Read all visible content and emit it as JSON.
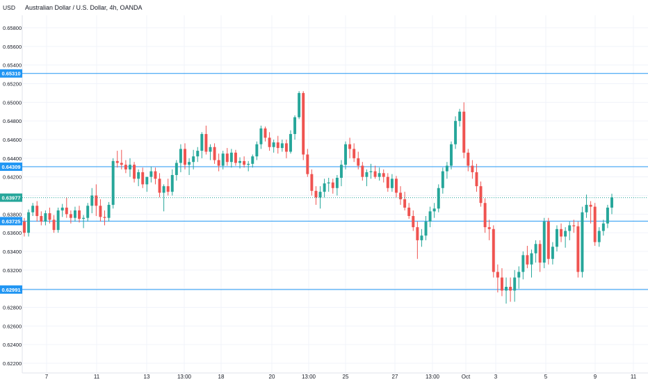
{
  "header": {
    "currency": "USD",
    "title": "Australian Dollar / U.S. Dollar, 4h, OANDA"
  },
  "colors": {
    "up": "#26a69a",
    "down": "#ef5350",
    "hline": "#2196f3",
    "grid": "#f0f3fa",
    "text": "#131722"
  },
  "chart_data": {
    "type": "candlestick",
    "title": "Australian Dollar / U.S. Dollar, 4h, OANDA",
    "ylim": [
      0.621,
      0.6598
    ],
    "y_ticks": [
      "0.62200",
      "0.62400",
      "0.62600",
      "0.62800",
      "0.63000",
      "0.63200",
      "0.63400",
      "0.63600",
      "0.63800",
      "0.64000",
      "0.64200",
      "0.64400",
      "0.64600",
      "0.64800",
      "0.65000",
      "0.65200",
      "0.65400",
      "0.65600",
      "0.65800"
    ],
    "x_ticks": [
      "7",
      "11",
      "13",
      "13:00",
      "18",
      "20",
      "13:00",
      "25",
      "27",
      "13:00",
      "Oct",
      "3",
      "5",
      "9",
      "11"
    ],
    "horizontal_levels": [
      "0.65310",
      "0.64309",
      "0.63725",
      "0.62991"
    ],
    "last_price": "0.63977",
    "grid": true,
    "candles": [
      [
        0.6372,
        0.6376,
        0.6356,
        0.636
      ],
      [
        0.636,
        0.6385,
        0.6356,
        0.6382
      ],
      [
        0.6382,
        0.6392,
        0.6378,
        0.6389
      ],
      [
        0.6389,
        0.6394,
        0.6372,
        0.6378
      ],
      [
        0.6378,
        0.6383,
        0.6368,
        0.6372
      ],
      [
        0.6372,
        0.6384,
        0.6368,
        0.6381
      ],
      [
        0.6381,
        0.6387,
        0.637,
        0.6374
      ],
      [
        0.6374,
        0.6379,
        0.636,
        0.6363
      ],
      [
        0.6363,
        0.6387,
        0.636,
        0.6384
      ],
      [
        0.6384,
        0.6391,
        0.6377,
        0.6387
      ],
      [
        0.6387,
        0.6398,
        0.6376,
        0.638
      ],
      [
        0.638,
        0.6384,
        0.637,
        0.6376
      ],
      [
        0.6376,
        0.6388,
        0.6372,
        0.6384
      ],
      [
        0.6384,
        0.6389,
        0.6371,
        0.6375
      ],
      [
        0.6375,
        0.6379,
        0.6365,
        0.6376
      ],
      [
        0.6376,
        0.6392,
        0.6372,
        0.6389
      ],
      [
        0.6389,
        0.6408,
        0.6381,
        0.64
      ],
      [
        0.64,
        0.6412,
        0.6378,
        0.6389
      ],
      [
        0.6389,
        0.6396,
        0.6372,
        0.6377
      ],
      [
        0.6377,
        0.6384,
        0.6368,
        0.6376
      ],
      [
        0.6376,
        0.6393,
        0.6372,
        0.639
      ],
      [
        0.639,
        0.644,
        0.6386,
        0.6437
      ],
      [
        0.6437,
        0.6448,
        0.643,
        0.6435
      ],
      [
        0.6435,
        0.6449,
        0.6428,
        0.6433
      ],
      [
        0.6433,
        0.6438,
        0.6424,
        0.6428
      ],
      [
        0.6428,
        0.644,
        0.642,
        0.6433
      ],
      [
        0.6433,
        0.6436,
        0.6414,
        0.6418
      ],
      [
        0.6418,
        0.6428,
        0.641,
        0.6425
      ],
      [
        0.6425,
        0.643,
        0.6408,
        0.6412
      ],
      [
        0.6412,
        0.642,
        0.6404,
        0.642
      ],
      [
        0.642,
        0.6431,
        0.6414,
        0.6426
      ],
      [
        0.6426,
        0.643,
        0.6412,
        0.6418
      ],
      [
        0.6418,
        0.6424,
        0.6398,
        0.6403
      ],
      [
        0.6403,
        0.6412,
        0.6383,
        0.641
      ],
      [
        0.641,
        0.6418,
        0.64,
        0.6404
      ],
      [
        0.6404,
        0.6428,
        0.64,
        0.6422
      ],
      [
        0.6422,
        0.6438,
        0.6416,
        0.6435
      ],
      [
        0.6435,
        0.6455,
        0.6425,
        0.645
      ],
      [
        0.645,
        0.6456,
        0.6428,
        0.6433
      ],
      [
        0.6433,
        0.644,
        0.6422,
        0.6436
      ],
      [
        0.6436,
        0.6449,
        0.6428,
        0.6442
      ],
      [
        0.6442,
        0.6452,
        0.6436,
        0.6448
      ],
      [
        0.6448,
        0.6468,
        0.644,
        0.6466
      ],
      [
        0.6466,
        0.6475,
        0.6444,
        0.6447
      ],
      [
        0.6447,
        0.6455,
        0.6438,
        0.6452
      ],
      [
        0.6452,
        0.6456,
        0.6434,
        0.6438
      ],
      [
        0.6438,
        0.6445,
        0.6426,
        0.6432
      ],
      [
        0.6432,
        0.6448,
        0.6428,
        0.6445
      ],
      [
        0.6445,
        0.6451,
        0.6432,
        0.6436
      ],
      [
        0.6436,
        0.645,
        0.643,
        0.6446
      ],
      [
        0.6446,
        0.6449,
        0.6432,
        0.6435
      ],
      [
        0.6435,
        0.6441,
        0.6429,
        0.6437
      ],
      [
        0.6437,
        0.6442,
        0.643,
        0.6433
      ],
      [
        0.6433,
        0.6437,
        0.6426,
        0.6434
      ],
      [
        0.6434,
        0.6444,
        0.643,
        0.6442
      ],
      [
        0.6442,
        0.6458,
        0.6438,
        0.6455
      ],
      [
        0.6455,
        0.6475,
        0.645,
        0.6472
      ],
      [
        0.6472,
        0.6474,
        0.6458,
        0.6462
      ],
      [
        0.6462,
        0.6468,
        0.6448,
        0.6452
      ],
      [
        0.6452,
        0.646,
        0.6446,
        0.6457
      ],
      [
        0.6457,
        0.6464,
        0.6445,
        0.6451
      ],
      [
        0.6451,
        0.646,
        0.6447,
        0.6456
      ],
      [
        0.6456,
        0.646,
        0.644,
        0.6447
      ],
      [
        0.6447,
        0.647,
        0.6445,
        0.6466
      ],
      [
        0.6466,
        0.6486,
        0.646,
        0.6484
      ],
      [
        0.6484,
        0.6512,
        0.6482,
        0.651
      ],
      [
        0.651,
        0.6512,
        0.6438,
        0.6444
      ],
      [
        0.6444,
        0.645,
        0.642,
        0.6423
      ],
      [
        0.6423,
        0.6428,
        0.64,
        0.6405
      ],
      [
        0.6405,
        0.641,
        0.639,
        0.6398
      ],
      [
        0.6398,
        0.641,
        0.6386,
        0.6404
      ],
      [
        0.6404,
        0.6418,
        0.6398,
        0.6413
      ],
      [
        0.6413,
        0.6419,
        0.6404,
        0.6414
      ],
      [
        0.6414,
        0.6418,
        0.6402,
        0.6408
      ],
      [
        0.6408,
        0.6422,
        0.64,
        0.6419
      ],
      [
        0.6419,
        0.6438,
        0.641,
        0.6433
      ],
      [
        0.6433,
        0.6458,
        0.6428,
        0.6455
      ],
      [
        0.6455,
        0.6462,
        0.644,
        0.645
      ],
      [
        0.645,
        0.6456,
        0.6436,
        0.644
      ],
      [
        0.644,
        0.6447,
        0.6428,
        0.6432
      ],
      [
        0.6432,
        0.6436,
        0.6416,
        0.642
      ],
      [
        0.642,
        0.6428,
        0.641,
        0.6425
      ],
      [
        0.6425,
        0.6434,
        0.6418,
        0.6426
      ],
      [
        0.6426,
        0.6432,
        0.6418,
        0.642
      ],
      [
        0.642,
        0.643,
        0.6416,
        0.6424
      ],
      [
        0.6424,
        0.6428,
        0.6414,
        0.642
      ],
      [
        0.642,
        0.6424,
        0.6404,
        0.6408
      ],
      [
        0.6408,
        0.6423,
        0.6404,
        0.6418
      ],
      [
        0.6418,
        0.6421,
        0.6398,
        0.6403
      ],
      [
        0.6403,
        0.641,
        0.639,
        0.6396
      ],
      [
        0.6396,
        0.6404,
        0.6384,
        0.6387
      ],
      [
        0.6387,
        0.6392,
        0.6375,
        0.6378
      ],
      [
        0.6378,
        0.6384,
        0.6362,
        0.6366
      ],
      [
        0.6366,
        0.6372,
        0.6332,
        0.6352
      ],
      [
        0.6352,
        0.6364,
        0.6345,
        0.6357
      ],
      [
        0.6357,
        0.6378,
        0.6352,
        0.6372
      ],
      [
        0.6372,
        0.6388,
        0.6366,
        0.6383
      ],
      [
        0.6383,
        0.6392,
        0.6376,
        0.6386
      ],
      [
        0.6386,
        0.6412,
        0.6382,
        0.6408
      ],
      [
        0.6408,
        0.643,
        0.6402,
        0.6426
      ],
      [
        0.6426,
        0.6436,
        0.6418,
        0.6432
      ],
      [
        0.6432,
        0.6458,
        0.6428,
        0.6455
      ],
      [
        0.6455,
        0.6485,
        0.645,
        0.648
      ],
      [
        0.648,
        0.6493,
        0.6474,
        0.649
      ],
      [
        0.649,
        0.65,
        0.644,
        0.6446
      ],
      [
        0.6446,
        0.645,
        0.6426,
        0.6432
      ],
      [
        0.6432,
        0.6438,
        0.6418,
        0.6425
      ],
      [
        0.6425,
        0.6434,
        0.6404,
        0.641
      ],
      [
        0.641,
        0.6415,
        0.6388,
        0.6392
      ],
      [
        0.6392,
        0.6397,
        0.636,
        0.6366
      ],
      [
        0.6366,
        0.6374,
        0.6352,
        0.6364
      ],
      [
        0.6364,
        0.6368,
        0.6312,
        0.6318
      ],
      [
        0.6318,
        0.6326,
        0.6296,
        0.6312
      ],
      [
        0.6312,
        0.6322,
        0.6292,
        0.6298
      ],
      [
        0.6298,
        0.6312,
        0.6284,
        0.6302
      ],
      [
        0.6302,
        0.6312,
        0.6286,
        0.6298
      ],
      [
        0.6298,
        0.632,
        0.6286,
        0.6312
      ],
      [
        0.6312,
        0.6324,
        0.63,
        0.6318
      ],
      [
        0.6318,
        0.634,
        0.631,
        0.6336
      ],
      [
        0.6336,
        0.6346,
        0.6322,
        0.6326
      ],
      [
        0.6326,
        0.6342,
        0.6312,
        0.6338
      ],
      [
        0.6338,
        0.6352,
        0.6328,
        0.6348
      ],
      [
        0.6348,
        0.6352,
        0.6318,
        0.6328
      ],
      [
        0.6328,
        0.6376,
        0.6322,
        0.6372
      ],
      [
        0.6372,
        0.6376,
        0.6326,
        0.6332
      ],
      [
        0.6332,
        0.635,
        0.6326,
        0.6345
      ],
      [
        0.6345,
        0.6368,
        0.634,
        0.6364
      ],
      [
        0.6364,
        0.637,
        0.635,
        0.6356
      ],
      [
        0.6356,
        0.6366,
        0.6344,
        0.6362
      ],
      [
        0.6362,
        0.6372,
        0.6352,
        0.6368
      ],
      [
        0.6368,
        0.6374,
        0.636,
        0.6367
      ],
      [
        0.6367,
        0.6372,
        0.6312,
        0.6318
      ],
      [
        0.6318,
        0.6388,
        0.6312,
        0.6382
      ],
      [
        0.6382,
        0.6401,
        0.6376,
        0.639
      ],
      [
        0.639,
        0.6394,
        0.637,
        0.6388
      ],
      [
        0.6388,
        0.6392,
        0.6346,
        0.635
      ],
      [
        0.635,
        0.6366,
        0.6345,
        0.6362
      ],
      [
        0.6362,
        0.6374,
        0.6357,
        0.637
      ],
      [
        0.637,
        0.639,
        0.6365,
        0.6387
      ],
      [
        0.6387,
        0.6402,
        0.638,
        0.6398
      ]
    ]
  }
}
